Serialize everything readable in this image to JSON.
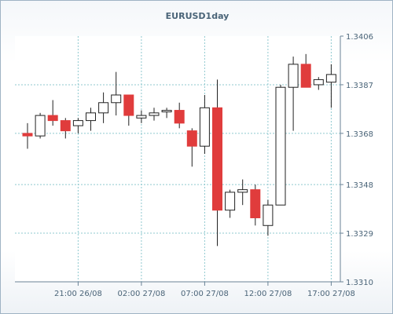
{
  "chart_data": {
    "type": "candlestick",
    "title": "EURUSD1day",
    "ylim": [
      1.331,
      1.3406
    ],
    "y_ticks": [
      "1.3406",
      "1.3387",
      "1.3368",
      "1.3348",
      "1.3329",
      "1.3310"
    ],
    "x_ticks": [
      "21:00 26/08",
      "02:00 27/08",
      "07:00 27/08",
      "12:00 27/08",
      "17:00 27/08"
    ],
    "colors": {
      "up": "#ffffff",
      "down": "#e03c3c",
      "outline": "#222222",
      "grid": "#8fc9cf"
    },
    "candles": [
      {
        "open": 1.3368,
        "high": 1.3372,
        "low": 1.3362,
        "close": 1.3367
      },
      {
        "open": 1.3367,
        "high": 1.3376,
        "low": 1.3366,
        "close": 1.3375
      },
      {
        "open": 1.3375,
        "high": 1.3381,
        "low": 1.3371,
        "close": 1.3373
      },
      {
        "open": 1.3373,
        "high": 1.3374,
        "low": 1.3366,
        "close": 1.3369
      },
      {
        "open": 1.3371,
        "high": 1.3374,
        "low": 1.3368,
        "close": 1.3373
      },
      {
        "open": 1.3373,
        "high": 1.3378,
        "low": 1.3369,
        "close": 1.3376
      },
      {
        "open": 1.3376,
        "high": 1.3384,
        "low": 1.3372,
        "close": 1.338
      },
      {
        "open": 1.338,
        "high": 1.3392,
        "low": 1.3375,
        "close": 1.3383
      },
      {
        "open": 1.3383,
        "high": 1.3383,
        "low": 1.3371,
        "close": 1.3375
      },
      {
        "open": 1.3374,
        "high": 1.3377,
        "low": 1.3372,
        "close": 1.3375
      },
      {
        "open": 1.3375,
        "high": 1.3378,
        "low": 1.3373,
        "close": 1.3376
      },
      {
        "open": 1.3377,
        "high": 1.3378,
        "low": 1.3374,
        "close": 1.3377
      },
      {
        "open": 1.3377,
        "high": 1.338,
        "low": 1.337,
        "close": 1.3372
      },
      {
        "open": 1.3369,
        "high": 1.337,
        "low": 1.3355,
        "close": 1.3363
      },
      {
        "open": 1.3363,
        "high": 1.3383,
        "low": 1.336,
        "close": 1.3378
      },
      {
        "open": 1.3378,
        "high": 1.3389,
        "low": 1.3324,
        "close": 1.3338
      },
      {
        "open": 1.3338,
        "high": 1.3346,
        "low": 1.3335,
        "close": 1.3345
      },
      {
        "open": 1.3345,
        "high": 1.335,
        "low": 1.334,
        "close": 1.3346
      },
      {
        "open": 1.3346,
        "high": 1.3348,
        "low": 1.3332,
        "close": 1.3335
      },
      {
        "open": 1.3332,
        "high": 1.3342,
        "low": 1.3328,
        "close": 1.334
      },
      {
        "open": 1.334,
        "high": 1.3387,
        "low": 1.334,
        "close": 1.3386
      },
      {
        "open": 1.3386,
        "high": 1.3398,
        "low": 1.3369,
        "close": 1.3395
      },
      {
        "open": 1.3395,
        "high": 1.3399,
        "low": 1.3386,
        "close": 1.3386
      },
      {
        "open": 1.3387,
        "high": 1.339,
        "low": 1.3385,
        "close": 1.3389
      },
      {
        "open": 1.3388,
        "high": 1.3395,
        "low": 1.3378,
        "close": 1.3391
      }
    ]
  }
}
